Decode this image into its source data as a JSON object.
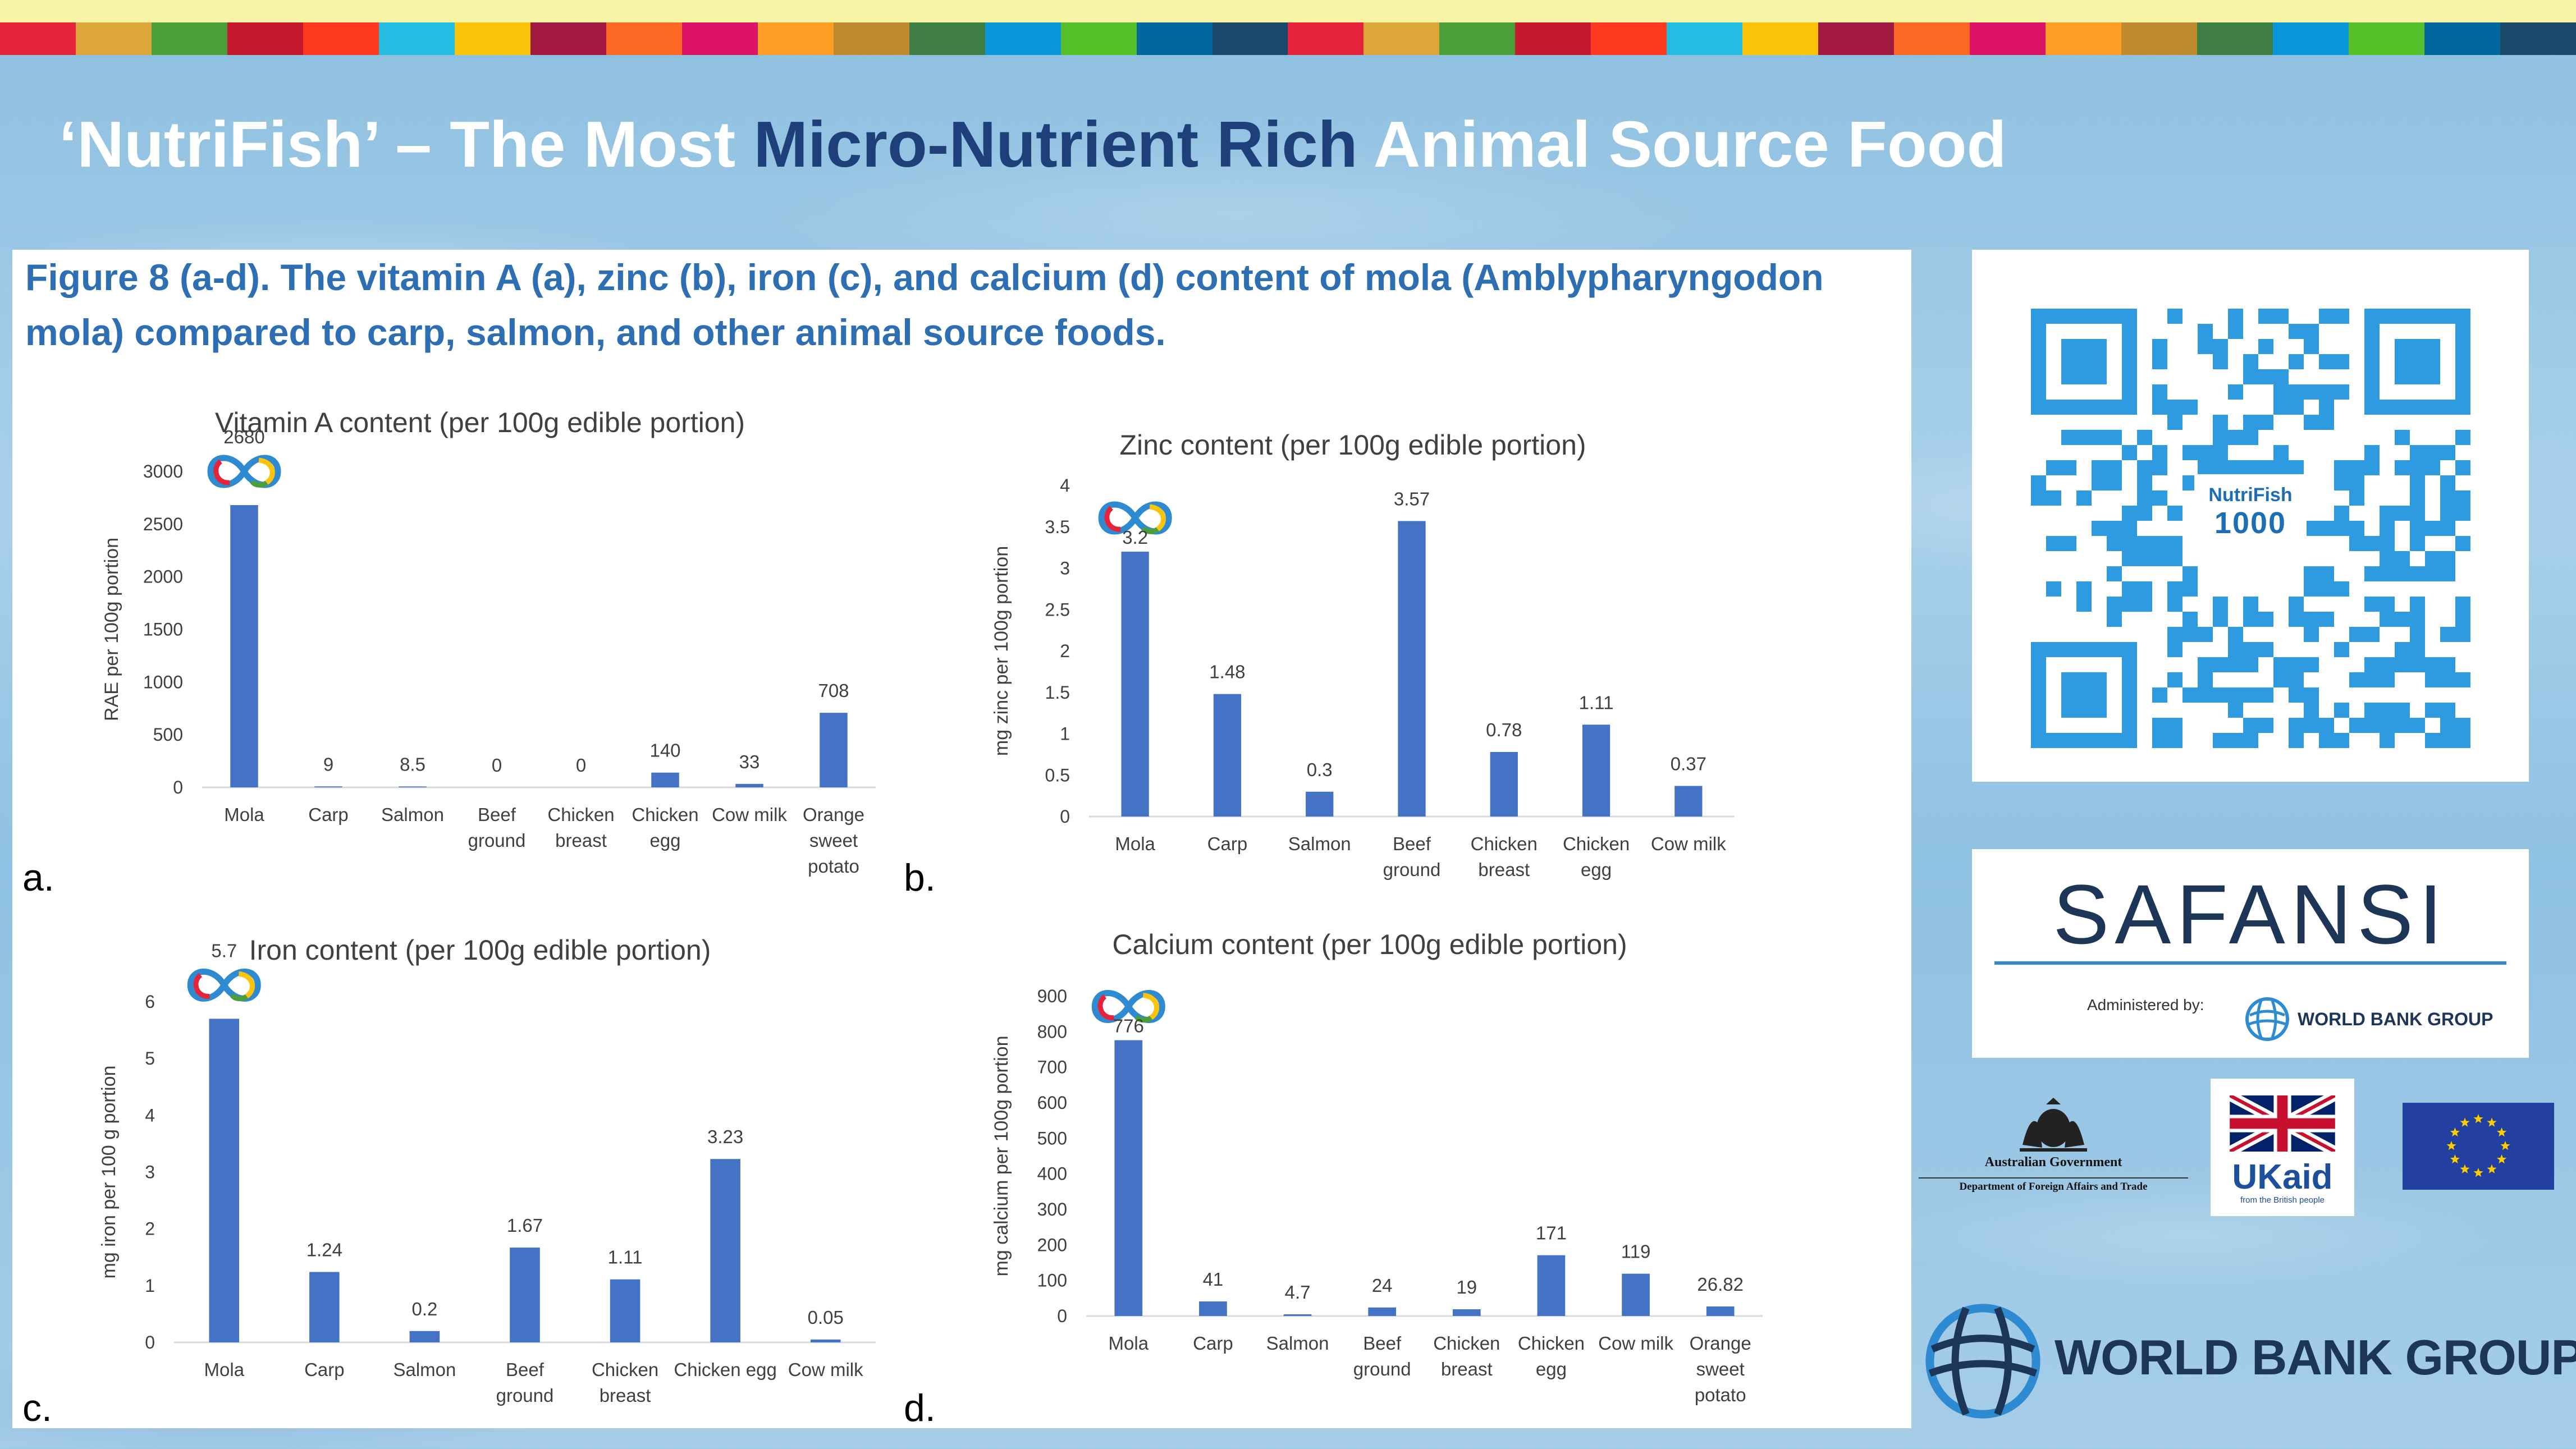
{
  "slide": {
    "title_part1": "‘NutriFish’ – The Most ",
    "title_highlight": "Micro-Nutrient Rich",
    "title_part2": " Animal Source Food",
    "figure_caption": "Figure 8 (a-d). The vitamin A (a), zinc (b), iron (c), and calcium (d) content of mola (Amblypharyngodon mola) compared to carp, salmon, and other animal source foods.",
    "sdg_colors": [
      "#e5243b",
      "#dda63a",
      "#4c9f38",
      "#c5192d",
      "#ff3a21",
      "#26bde2",
      "#fcc30b",
      "#a21942",
      "#fd6925",
      "#dd1367",
      "#fd9d24",
      "#bf8b2e",
      "#3f7e44",
      "#0a97d9",
      "#56c02b",
      "#00689d",
      "#19486a"
    ],
    "accent_blue": "#4472c4"
  },
  "logos": {
    "qr_center_line1": "NutriFish",
    "qr_center_line2": "1000",
    "safansi_name": "SAFANSI",
    "safansi_admin": "Administered by:",
    "safansi_wbg": "WORLD BANK GROUP",
    "aus_gov": "Australian Government",
    "aus_dept": "Department of Foreign Affairs and Trade",
    "ukaid": "UKaid",
    "ukaid_sub": "from the British people",
    "world_bank_group": "WORLD BANK GROUP"
  },
  "chart_data": [
    {
      "panel": "a.",
      "type": "bar",
      "title": "Vitamin A content (per 100g edible portion)",
      "ylabel": "RAE per 100g portion",
      "ylim": [
        0,
        3000
      ],
      "yticks": [
        0,
        500,
        1000,
        1500,
        2000,
        2500,
        3000
      ],
      "categories": [
        [
          "Mola"
        ],
        [
          "Carp"
        ],
        [
          "Salmon"
        ],
        [
          "Beef",
          "ground"
        ],
        [
          "Chicken",
          "breast"
        ],
        [
          "Chicken",
          "egg"
        ],
        [
          "Cow milk"
        ],
        [
          "Orange",
          "sweet",
          "potato"
        ]
      ],
      "values": [
        2680,
        9,
        8.5,
        0,
        0,
        140,
        33,
        708
      ],
      "labels": [
        "2680",
        "9",
        "8.5",
        "0",
        "0",
        "140",
        "33",
        "708"
      ]
    },
    {
      "panel": "b.",
      "type": "bar",
      "title": "Zinc content (per 100g edible portion)",
      "ylabel": "mg zinc per 100g portion",
      "ylim": [
        0,
        4
      ],
      "yticks": [
        0,
        0.5,
        1,
        1.5,
        2,
        2.5,
        3,
        3.5,
        4
      ],
      "categories": [
        [
          "Mola"
        ],
        [
          "Carp"
        ],
        [
          "Salmon"
        ],
        [
          "Beef",
          "ground"
        ],
        [
          "Chicken",
          "breast"
        ],
        [
          "Chicken",
          "egg"
        ],
        [
          "Cow milk"
        ]
      ],
      "values": [
        3.2,
        1.48,
        0.3,
        3.57,
        0.78,
        1.11,
        0.37
      ],
      "labels": [
        "3.2",
        "1.48",
        "0.3",
        "3.57",
        "0.78",
        "1.11",
        "0.37"
      ]
    },
    {
      "panel": "c.",
      "type": "bar",
      "title": "Iron content (per 100g edible portion)",
      "ylabel": "mg iron per 100 g portion",
      "ylim": [
        0,
        6
      ],
      "yticks": [
        0,
        1,
        2,
        3,
        4,
        5,
        6
      ],
      "categories": [
        [
          "Mola"
        ],
        [
          "Carp"
        ],
        [
          "Salmon"
        ],
        [
          "Beef",
          "ground"
        ],
        [
          "Chicken",
          "breast"
        ],
        [
          "Chicken egg"
        ],
        [
          "Cow milk"
        ]
      ],
      "values": [
        5.7,
        1.24,
        0.2,
        1.67,
        1.11,
        3.23,
        0.05
      ],
      "labels": [
        "5.7",
        "1.24",
        "0.2",
        "1.67",
        "1.11",
        "3.23",
        "0.05"
      ]
    },
    {
      "panel": "d.",
      "type": "bar",
      "title": "Calcium content (per 100g edible portion)",
      "ylabel": "mg calcium per 100g portion",
      "ylim": [
        0,
        900
      ],
      "yticks": [
        0,
        100,
        200,
        300,
        400,
        500,
        600,
        700,
        800,
        900
      ],
      "categories": [
        [
          "Mola"
        ],
        [
          "Carp"
        ],
        [
          "Salmon"
        ],
        [
          "Beef",
          "ground"
        ],
        [
          "Chicken",
          "breast"
        ],
        [
          "Chicken",
          "egg"
        ],
        [
          "Cow milk"
        ],
        [
          "Orange",
          "sweet",
          "potato"
        ]
      ],
      "values": [
        776,
        41,
        4.7,
        24,
        19,
        171,
        119,
        26.82
      ],
      "labels": [
        "776",
        "41",
        "4.7",
        "24",
        "19",
        "171",
        "119",
        "26.82"
      ]
    }
  ]
}
